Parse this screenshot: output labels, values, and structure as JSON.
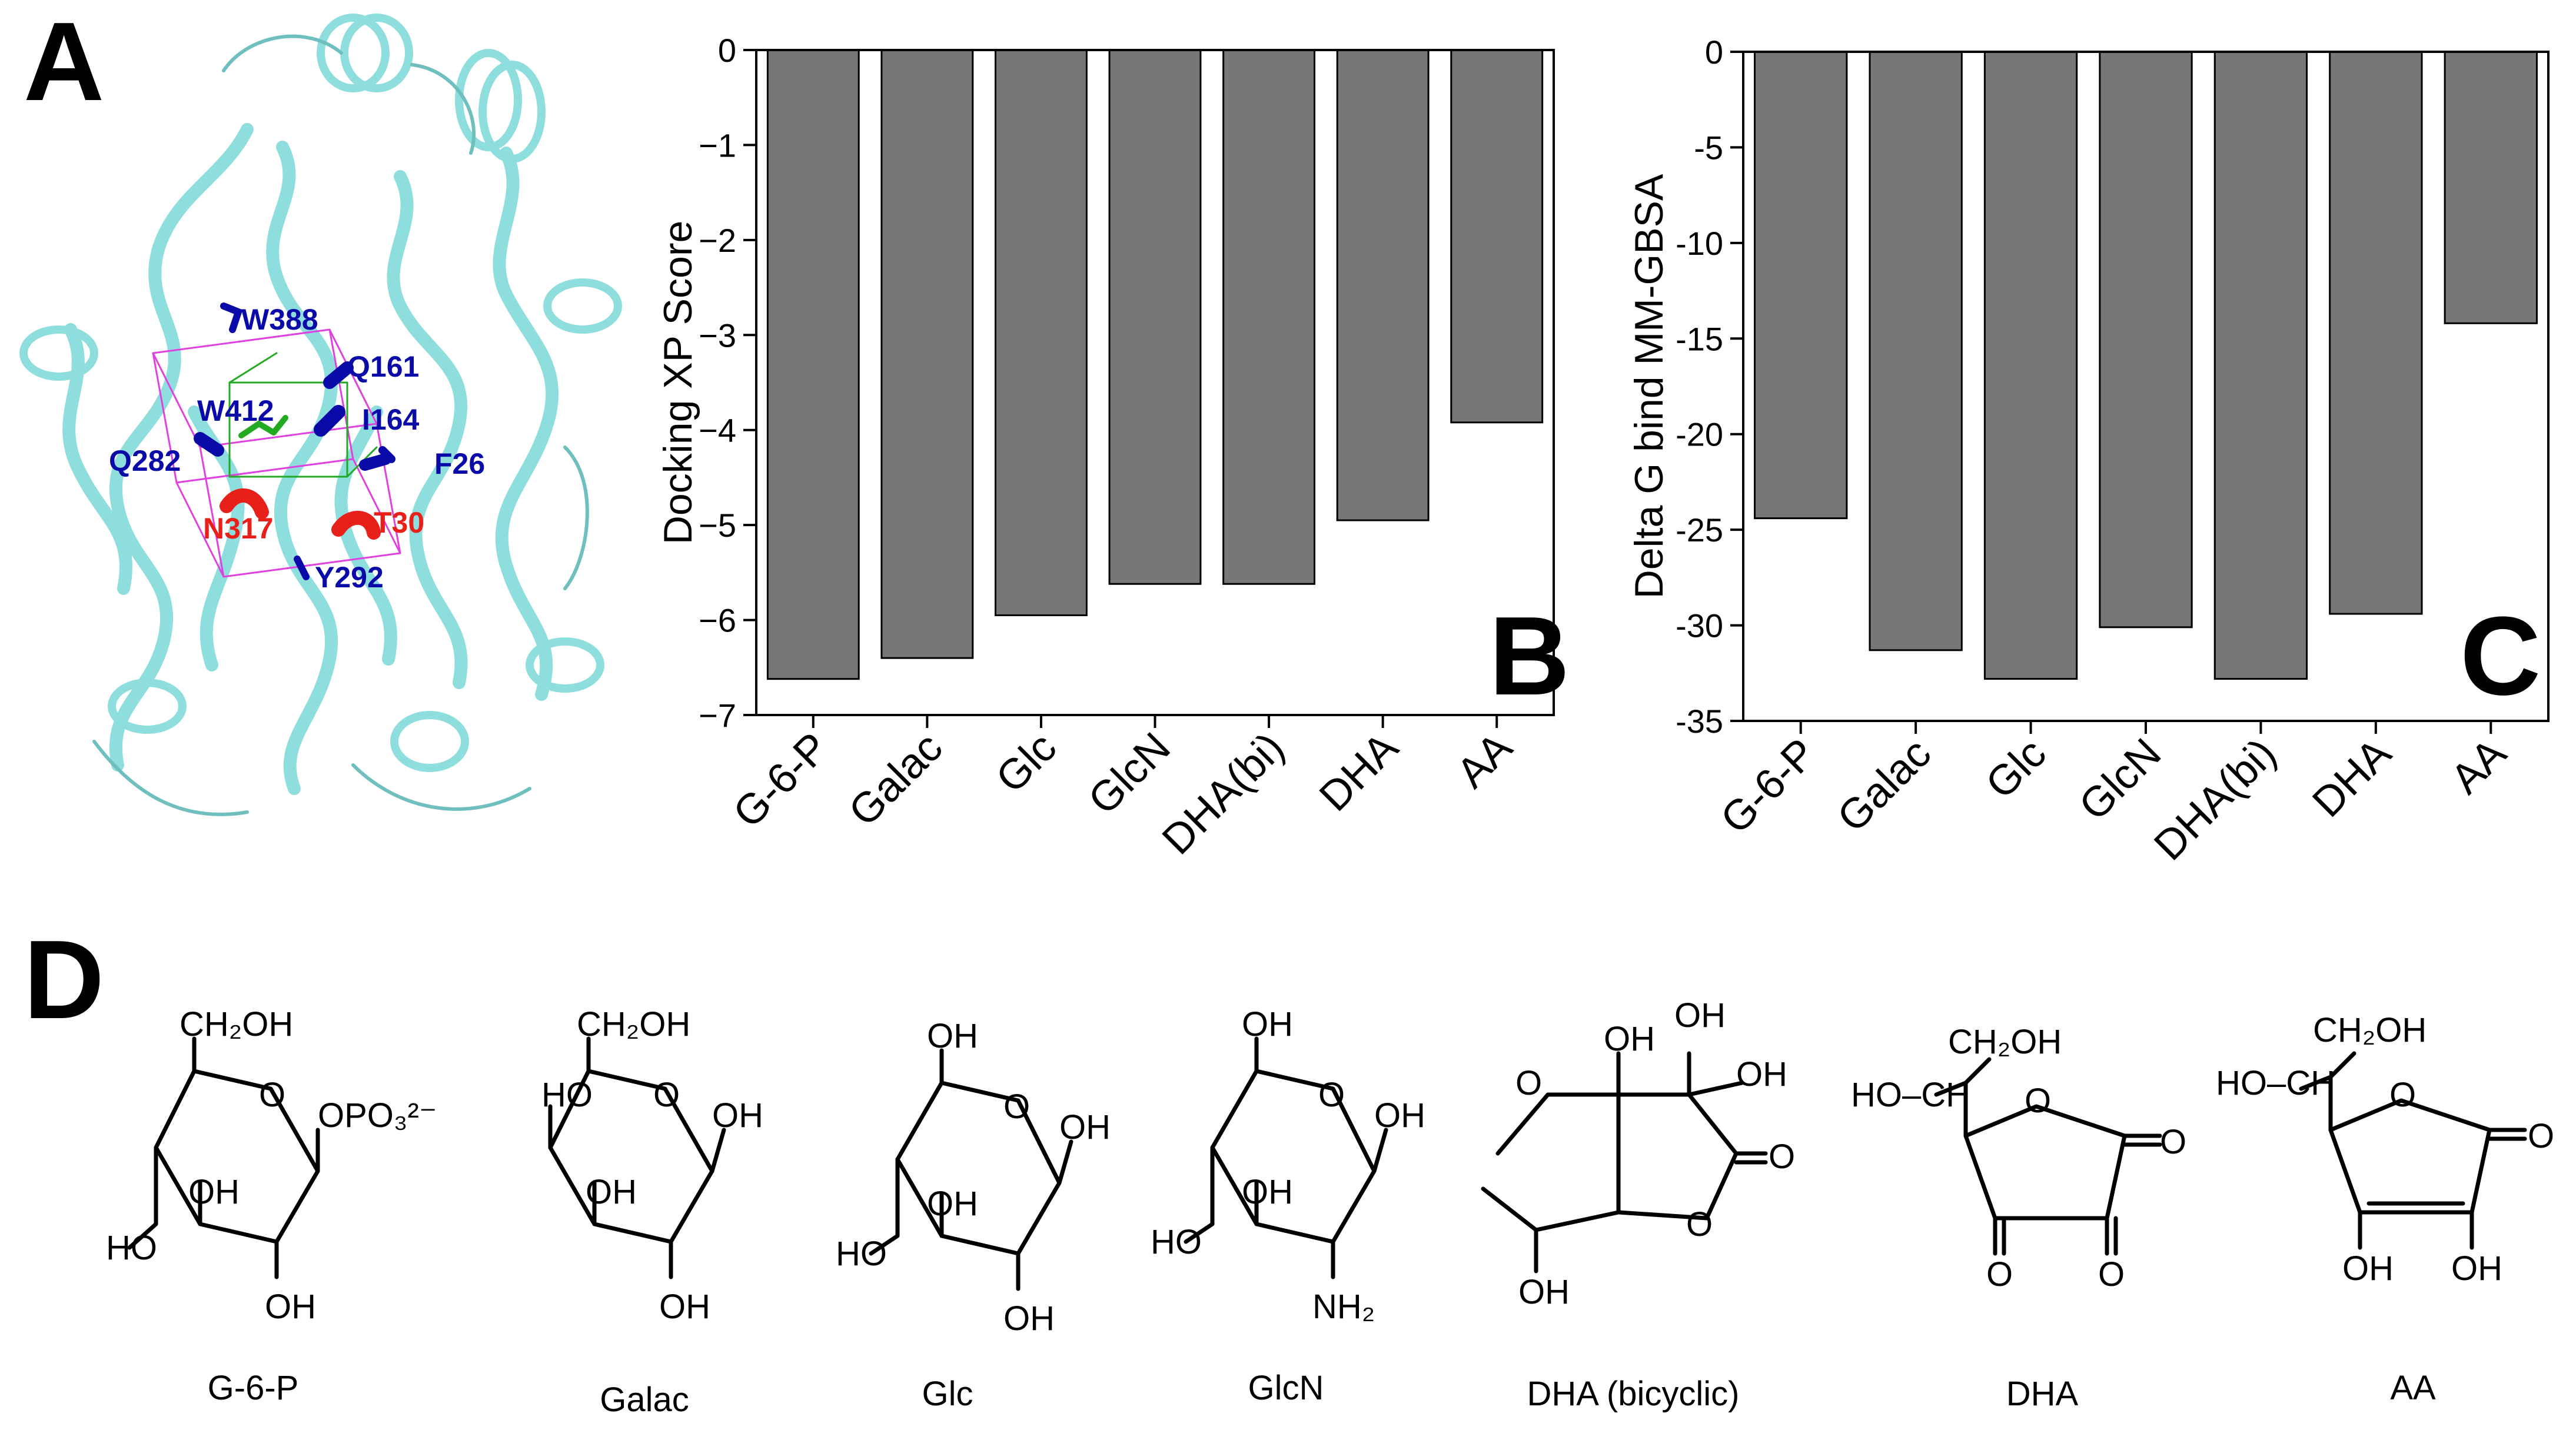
{
  "panels": {
    "a": "A",
    "b": "B",
    "c": "C",
    "d": "D"
  },
  "residues": {
    "blue": [
      "W388",
      "Q161",
      "W412",
      "I164",
      "Q282",
      "F26",
      "Y292"
    ],
    "red": [
      "N317",
      "T30"
    ]
  },
  "colors": {
    "bar": "#777777",
    "protein": "#8fdede",
    "residue_blue": "#0a0aa8",
    "residue_red": "#e8201a",
    "box": "#e040e0",
    "ligand": "#22aa22"
  },
  "chart_data": [
    {
      "type": "bar",
      "panel": "B",
      "categories": [
        "G-6-P",
        "Galac",
        "Glc",
        "GlcN",
        "DHA(bi)",
        "DHA",
        "AA"
      ],
      "values": [
        -6.62,
        -6.4,
        -5.95,
        -5.62,
        -5.62,
        -4.95,
        -3.92
      ],
      "ylabel": "Docking XP Score",
      "ylim": [
        -7,
        0
      ],
      "yticks": [
        0,
        -1,
        -2,
        -3,
        -4,
        -5,
        -6,
        -7
      ],
      "ytick_labels": [
        "0",
        "−1",
        "−2",
        "−3",
        "−4",
        "−5",
        "−6",
        "−7"
      ],
      "grid": false
    },
    {
      "type": "bar",
      "panel": "C",
      "categories": [
        "G-6-P",
        "Galac",
        "Glc",
        "GlcN",
        "DHA(bi)",
        "DHA",
        "AA"
      ],
      "values": [
        -24.4,
        -31.3,
        -32.8,
        -30.1,
        -32.8,
        -29.4,
        -14.2
      ],
      "ylabel": "Delta G bind MM-GBSA",
      "ylim": [
        -35,
        0
      ],
      "yticks": [
        0,
        -5,
        -10,
        -15,
        -20,
        -25,
        -30,
        -35
      ],
      "ytick_labels": [
        "0",
        "-5",
        "-10",
        "-15",
        "-20",
        "-25",
        "-30",
        "-35"
      ],
      "grid": false
    }
  ],
  "molecules": {
    "labels": [
      "G-6-P",
      "Galac",
      "Glc",
      "GlcN",
      "DHA (bicyclic)",
      "DHA",
      "AA"
    ],
    "g6p": {
      "ch2oh": "CH₂OH",
      "o": "O",
      "opo3": "OPO₃²⁻",
      "oh1": "OH",
      "ho": "HO",
      "oh2": "OH"
    },
    "galac": {
      "ch2oh": "CH₂OH",
      "o": "O",
      "ho": "HO",
      "oh_r": "OH",
      "oh1": "OH",
      "oh2": "OH"
    },
    "glc": {
      "oh_t": "OH",
      "o": "O",
      "oh_r": "OH",
      "oh1": "OH",
      "ho": "HO",
      "oh2": "OH"
    },
    "glcn": {
      "oh_t": "OH",
      "o": "O",
      "oh_r": "OH",
      "oh1": "OH",
      "ho": "HO",
      "nh2": "NH₂"
    },
    "dhab": {
      "o1": "O",
      "oh1": "OH",
      "oh2": "OH",
      "oh3": "OH",
      "co": "O",
      "o2": "O",
      "oh4": "OH"
    },
    "dha": {
      "ch2oh": "CH₂OH",
      "hoch": "HO–CH",
      "o": "O",
      "co1": "O",
      "co2": "O",
      "co3": "O"
    },
    "aa": {
      "ch2oh": "CH₂OH",
      "hoch": "HO–CH",
      "o": "O",
      "co": "O",
      "oh1": "OH",
      "oh2": "OH"
    }
  }
}
